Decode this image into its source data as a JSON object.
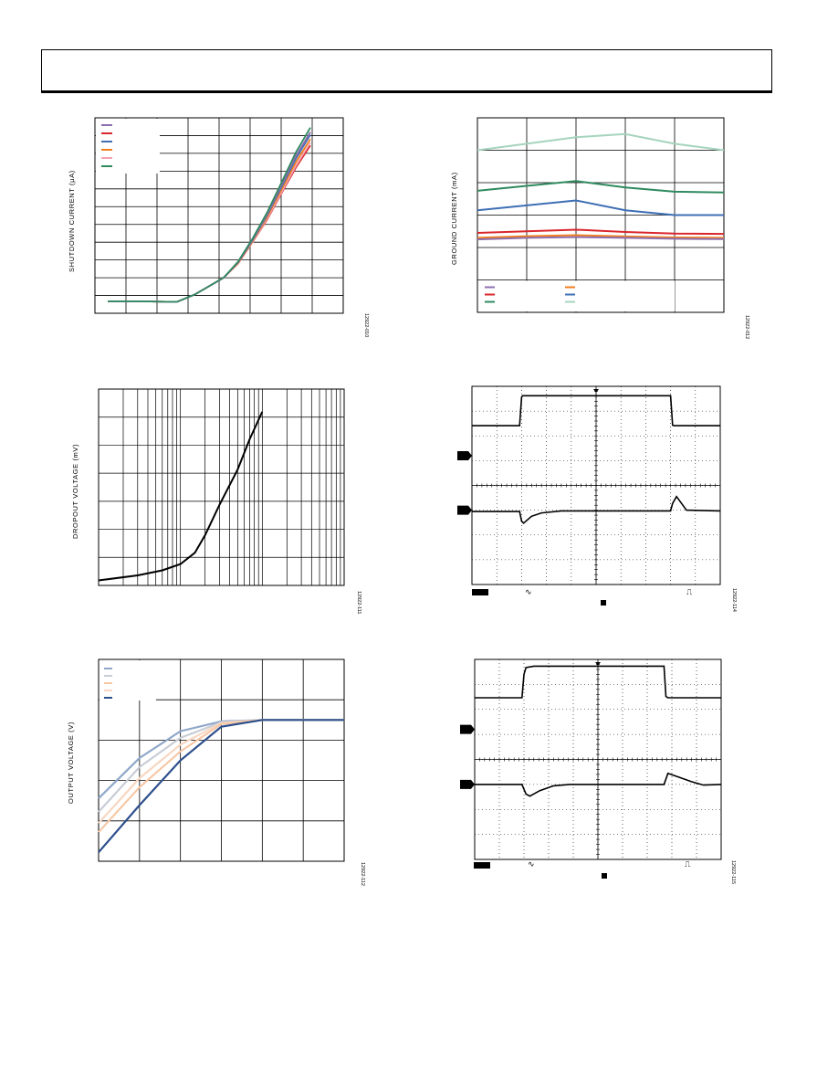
{
  "header": {},
  "chart_data": [
    {
      "type": "line",
      "ylabel": "SHUTDOWN CURRENT (µA)",
      "figure_id": "12922-010",
      "legend_colors": [
        "#8e6fae",
        "#d9262c",
        "#3e6fb5",
        "#f07f21",
        "#f4a3b0",
        "#2f8a5f"
      ],
      "x": [
        0,
        1,
        2,
        2.4,
        3,
        4,
        4.5,
        5,
        5.5,
        6,
        6.5,
        7
      ],
      "series": [
        {
          "color": "#d9262c",
          "values": [
            0.35,
            0.35,
            0.3,
            0.3,
            1.1,
            3.0,
            4.6,
            7.0,
            9.5,
            12.5,
            15.4,
            17.9
          ]
        },
        {
          "color": "#f4a3b0",
          "values": [
            0.35,
            0.35,
            0.3,
            0.3,
            1.1,
            3.0,
            4.6,
            7.0,
            9.6,
            12.6,
            15.6,
            18.2
          ]
        },
        {
          "color": "#f07f21",
          "values": [
            0.35,
            0.35,
            0.3,
            0.3,
            1.1,
            3.0,
            4.6,
            7.1,
            9.8,
            12.9,
            16.0,
            18.6
          ]
        },
        {
          "color": "#3e6fb5",
          "values": [
            0.35,
            0.35,
            0.3,
            0.3,
            1.1,
            3.0,
            4.7,
            7.2,
            10.0,
            13.2,
            16.4,
            19.1
          ]
        },
        {
          "color": "#8e6fae",
          "values": [
            0.35,
            0.35,
            0.3,
            0.3,
            1.1,
            3.0,
            4.7,
            7.3,
            10.1,
            13.4,
            16.7,
            19.4
          ]
        },
        {
          "color": "#2f8a5f",
          "values": [
            0.35,
            0.35,
            0.3,
            0.3,
            1.1,
            3.0,
            4.8,
            7.4,
            10.3,
            13.7,
            17.1,
            19.9
          ]
        }
      ],
      "xlim": [
        0,
        7
      ],
      "ylim": [
        -1,
        21
      ]
    },
    {
      "type": "line",
      "ylabel": "GROUND CURRENT (mA)",
      "figure_id": "12922-012",
      "legend_colors": [
        "#8e6fae",
        "#d9262c",
        "#2f8a5f",
        "#f07f21",
        "#3e6fb5",
        "#a6d4bd"
      ],
      "x": [
        0,
        1,
        2,
        3,
        4,
        5
      ],
      "series": [
        {
          "color": "#a6d4bd",
          "values": [
            5.0,
            5.2,
            5.4,
            5.5,
            5.2,
            5.0
          ]
        },
        {
          "color": "#2f8a5f",
          "values": [
            3.75,
            3.9,
            4.05,
            3.85,
            3.72,
            3.7
          ]
        },
        {
          "color": "#3e6fb5",
          "values": [
            3.15,
            3.3,
            3.45,
            3.15,
            3.0,
            3.0
          ]
        },
        {
          "color": "#d9262c",
          "values": [
            2.45,
            2.5,
            2.55,
            2.48,
            2.43,
            2.42
          ]
        },
        {
          "color": "#f07f21",
          "values": [
            2.3,
            2.35,
            2.38,
            2.34,
            2.31,
            2.3
          ]
        },
        {
          "color": "#8e6fae",
          "values": [
            2.25,
            2.3,
            2.32,
            2.3,
            2.27,
            2.26
          ]
        }
      ],
      "xlim": [
        0,
        5
      ],
      "ylim": [
        0,
        6
      ]
    },
    {
      "type": "line",
      "ylabel": "DROPOUT VOLTAGE (mV)",
      "figure_id": "12922-111",
      "log_x": true,
      "x": [
        1,
        3,
        6,
        10,
        15,
        20,
        30,
        50,
        70,
        100
      ],
      "series": [
        {
          "color": "#000000",
          "values": [
            0.2,
            0.4,
            0.6,
            0.85,
            1.3,
            2.0,
            3.2,
            4.6,
            5.8,
            6.9
          ]
        }
      ],
      "xlim": [
        1,
        1000
      ],
      "ylim": [
        0,
        7.8
      ]
    },
    {
      "type": "line",
      "figure_id": "12922-114",
      "scope": true,
      "traces": [
        {
          "x": [
            0,
            2.4,
            2.5,
            2.55,
            10,
            10.1,
            10.15,
            12.5
          ],
          "y": [
            2.2,
            2.2,
            4.3,
            4.4,
            4.4,
            2.25,
            2.2,
            2.2
          ]
        },
        {
          "x": [
            0,
            2.4,
            2.5,
            2.6,
            3.0,
            3.5,
            4.5,
            10,
            10.1,
            10.3,
            10.6,
            10.8,
            12.5
          ],
          "y": [
            -0.1,
            -0.1,
            -0.8,
            -0.95,
            -0.45,
            -0.2,
            -0.05,
            -0.05,
            0.5,
            1.0,
            0.4,
            0.0,
            -0.05
          ]
        }
      ]
    },
    {
      "type": "line",
      "ylabel": "OUTPUT VOLTAGE (V)",
      "figure_id": "12922-112",
      "legend_colors": [
        "#8fa7c9",
        "#c8cdd6",
        "#f7c8a6",
        "#f8d7c2",
        "#2c4f8c"
      ],
      "x": [
        0,
        1,
        2,
        3,
        4,
        5,
        6
      ],
      "series": [
        {
          "color": "#8fa7c9",
          "values": [
            2.0,
            2.9,
            3.5,
            3.72,
            3.75,
            3.75,
            3.75
          ]
        },
        {
          "color": "#c8cdd6",
          "values": [
            1.7,
            2.7,
            3.35,
            3.7,
            3.75,
            3.75,
            3.75
          ]
        },
        {
          "color": "#f8d7c2",
          "values": [
            1.45,
            2.45,
            3.2,
            3.68,
            3.75,
            3.75,
            3.75
          ]
        },
        {
          "color": "#f7c8a6",
          "values": [
            1.25,
            2.25,
            3.05,
            3.66,
            3.75,
            3.75,
            3.75
          ]
        },
        {
          "color": "#2c4f8c",
          "values": [
            0.8,
            1.85,
            2.85,
            3.6,
            3.75,
            3.75,
            3.75
          ]
        }
      ],
      "xlim": [
        0,
        6
      ],
      "ylim": [
        0.6,
        5.1
      ]
    },
    {
      "type": "line",
      "figure_id": "12922-115",
      "scope": true,
      "traces": [
        {
          "x": [
            0,
            2.4,
            2.5,
            2.6,
            3.0,
            9.6,
            9.7,
            9.8,
            12.5
          ],
          "y": [
            2.3,
            2.3,
            4.0,
            4.5,
            4.6,
            4.6,
            2.4,
            2.3,
            2.3
          ]
        },
        {
          "x": [
            0,
            2.4,
            2.6,
            2.8,
            3.3,
            4.0,
            4.8,
            9.6,
            9.8,
            10.2,
            11.0,
            11.6,
            12.5
          ],
          "y": [
            0.0,
            0.0,
            -0.7,
            -0.85,
            -0.45,
            -0.1,
            0.0,
            0.0,
            0.8,
            0.6,
            0.2,
            -0.05,
            0.0
          ]
        }
      ]
    }
  ]
}
